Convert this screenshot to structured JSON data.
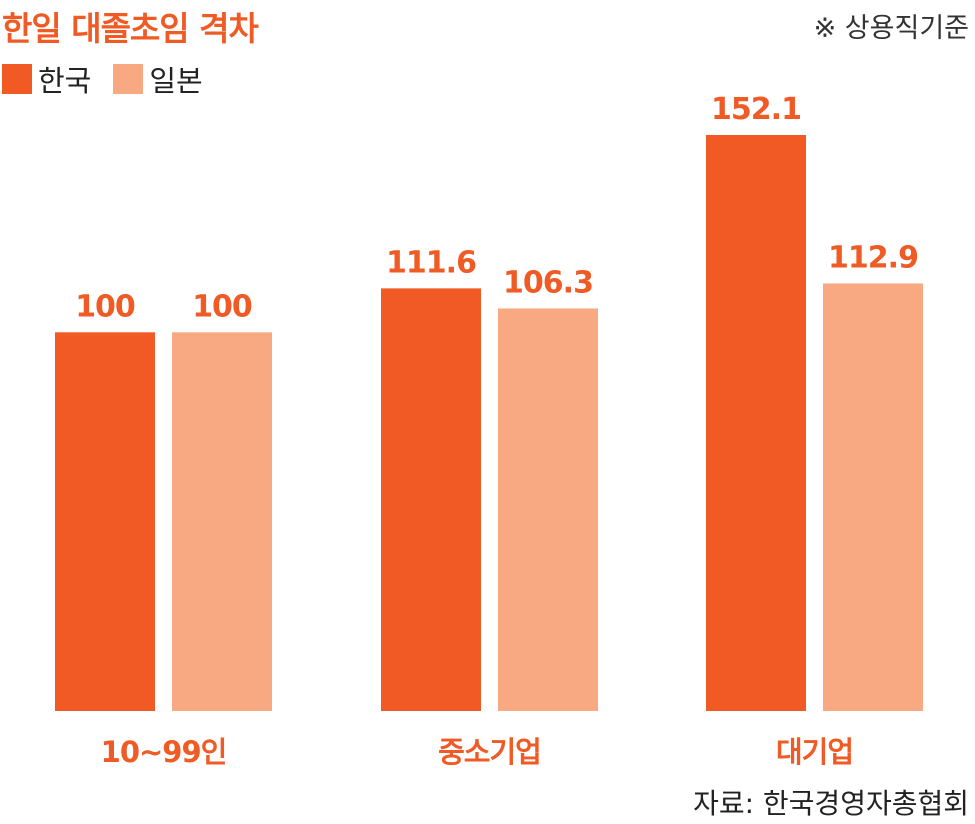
{
  "chart_data": {
    "type": "bar",
    "title": "한일 대졸초임 격차",
    "note": "※ 상용직기준",
    "source": "자료: 한국경영자총협회",
    "categories": [
      "10~99인",
      "중소기업",
      "대기업"
    ],
    "series": [
      {
        "name": "한국",
        "values": [
          100,
          111.6,
          152.1
        ],
        "labels": [
          "100",
          "111.6",
          "152.1"
        ],
        "color": "#f15a24"
      },
      {
        "name": "일본",
        "values": [
          100,
          106.3,
          112.9
        ],
        "labels": [
          "100",
          "106.3",
          "112.9"
        ],
        "color": "#f9a982"
      }
    ],
    "ylim": [
      0,
      152.1
    ],
    "legend_position": "top-left",
    "grid": false,
    "label_color": "#f05a24"
  }
}
